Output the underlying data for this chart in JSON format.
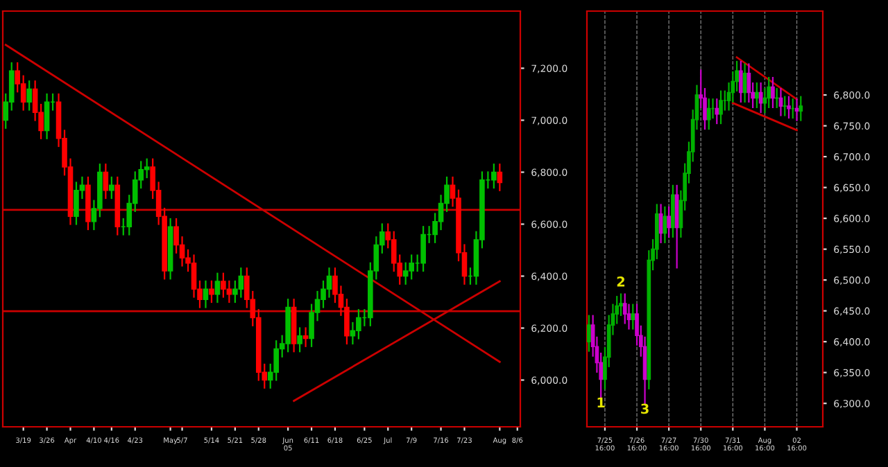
{
  "chart_data": [
    {
      "type": "candlestick",
      "categories": [
        null,
        null,
        null,
        "3/19",
        null,
        null,
        null,
        "3/26",
        null,
        null,
        null,
        "Apr",
        null,
        null,
        null,
        "4/10",
        null,
        null,
        "4/16",
        null,
        null,
        null,
        "4/23",
        null,
        null,
        null,
        null,
        null,
        "May",
        null,
        "5/7",
        null,
        null,
        null,
        null,
        "5/14",
        null,
        null,
        null,
        "5/21",
        null,
        null,
        null,
        "5/28",
        null,
        null,
        null,
        null,
        "Jun 05",
        null,
        null,
        null,
        "6/11",
        null,
        null,
        null,
        "6/18",
        null,
        null,
        null,
        null,
        "6/25",
        null,
        null,
        null,
        "Jul",
        null,
        null,
        null,
        "7/9",
        null,
        null,
        null,
        null,
        "7/16",
        null,
        null,
        null,
        "7/23",
        null,
        null,
        null,
        null,
        null,
        "Aug",
        null,
        null,
        "8/6"
      ],
      "ohlc": [
        [
          7000,
          7100,
          6970,
          7070
        ],
        [
          7070,
          7220,
          7040,
          7190
        ],
        [
          7190,
          7220,
          7110,
          7140
        ],
        [
          7140,
          7170,
          7040,
          7070
        ],
        [
          7070,
          7150,
          7040,
          7120
        ],
        [
          7120,
          7150,
          7000,
          7030
        ],
        [
          7030,
          7060,
          6930,
          6960
        ],
        [
          6960,
          7100,
          6930,
          7070
        ],
        [
          7070,
          7100,
          7040,
          7070
        ],
        [
          7070,
          7100,
          6900,
          6930
        ],
        [
          6930,
          6960,
          6790,
          6820
        ],
        [
          6820,
          6850,
          6600,
          6630
        ],
        [
          6630,
          6760,
          6600,
          6730
        ],
        [
          6730,
          6780,
          6700,
          6750
        ],
        [
          6750,
          6780,
          6580,
          6610
        ],
        [
          6610,
          6690,
          6580,
          6660
        ],
        [
          6660,
          6830,
          6630,
          6800
        ],
        [
          6800,
          6830,
          6700,
          6730
        ],
        [
          6730,
          6780,
          6700,
          6750
        ],
        [
          6750,
          6780,
          6560,
          6590
        ],
        [
          6590,
          6620,
          6560,
          6590
        ],
        [
          6590,
          6710,
          6560,
          6680
        ],
        [
          6680,
          6800,
          6650,
          6770
        ],
        [
          6770,
          6840,
          6740,
          6810
        ],
        [
          6810,
          6850,
          6780,
          6820
        ],
        [
          6820,
          6850,
          6700,
          6730
        ],
        [
          6730,
          6760,
          6600,
          6630
        ],
        [
          6630,
          6660,
          6390,
          6420
        ],
        [
          6420,
          6620,
          6390,
          6590
        ],
        [
          6590,
          6620,
          6490,
          6520
        ],
        [
          6520,
          6550,
          6440,
          6470
        ],
        [
          6470,
          6500,
          6420,
          6450
        ],
        [
          6450,
          6480,
          6320,
          6350
        ],
        [
          6350,
          6380,
          6280,
          6310
        ],
        [
          6310,
          6380,
          6280,
          6350
        ],
        [
          6350,
          6380,
          6300,
          6330
        ],
        [
          6330,
          6410,
          6300,
          6380
        ],
        [
          6380,
          6410,
          6320,
          6350
        ],
        [
          6350,
          6380,
          6300,
          6330
        ],
        [
          6330,
          6380,
          6300,
          6350
        ],
        [
          6350,
          6430,
          6320,
          6400
        ],
        [
          6400,
          6430,
          6280,
          6310
        ],
        [
          6310,
          6340,
          6210,
          6240
        ],
        [
          6240,
          6270,
          6000,
          6030
        ],
        [
          6030,
          6060,
          5970,
          6000
        ],
        [
          6000,
          6060,
          5970,
          6030
        ],
        [
          6030,
          6150,
          6000,
          6120
        ],
        [
          6120,
          6170,
          6090,
          6140
        ],
        [
          6140,
          6310,
          6110,
          6280
        ],
        [
          6280,
          6310,
          6110,
          6140
        ],
        [
          6140,
          6200,
          6110,
          6170
        ],
        [
          6170,
          6200,
          6130,
          6160
        ],
        [
          6160,
          6290,
          6130,
          6260
        ],
        [
          6260,
          6340,
          6230,
          6310
        ],
        [
          6310,
          6380,
          6280,
          6350
        ],
        [
          6350,
          6430,
          6320,
          6400
        ],
        [
          6400,
          6430,
          6300,
          6330
        ],
        [
          6330,
          6360,
          6250,
          6280
        ],
        [
          6280,
          6310,
          6140,
          6170
        ],
        [
          6170,
          6220,
          6140,
          6190
        ],
        [
          6190,
          6270,
          6160,
          6240
        ],
        [
          6240,
          6270,
          6210,
          6240
        ],
        [
          6240,
          6450,
          6210,
          6420
        ],
        [
          6420,
          6550,
          6390,
          6520
        ],
        [
          6520,
          6600,
          6490,
          6570
        ],
        [
          6570,
          6600,
          6510,
          6540
        ],
        [
          6540,
          6570,
          6420,
          6450
        ],
        [
          6450,
          6480,
          6370,
          6400
        ],
        [
          6400,
          6450,
          6370,
          6420
        ],
        [
          6420,
          6480,
          6390,
          6450
        ],
        [
          6450,
          6480,
          6420,
          6450
        ],
        [
          6450,
          6590,
          6420,
          6560
        ],
        [
          6560,
          6590,
          6530,
          6560
        ],
        [
          6560,
          6640,
          6530,
          6610
        ],
        [
          6610,
          6710,
          6580,
          6680
        ],
        [
          6680,
          6780,
          6650,
          6750
        ],
        [
          6750,
          6780,
          6670,
          6700
        ],
        [
          6700,
          6730,
          6460,
          6490
        ],
        [
          6490,
          6520,
          6370,
          6400
        ],
        [
          6400,
          6430,
          6370,
          6400
        ],
        [
          6400,
          6570,
          6370,
          6540
        ],
        [
          6540,
          6800,
          6510,
          6770
        ],
        [
          6770,
          6800,
          6740,
          6770
        ],
        [
          6770,
          6830,
          6740,
          6800
        ],
        [
          6800,
          6830,
          6730,
          6760
        ],
        null,
        null,
        null
      ],
      "colors": [
        "#00c000",
        "#00c000",
        "#ff0000",
        "#ff0000",
        "#00c000",
        "#ff0000",
        "#ff0000",
        "#00c000",
        "#00c000",
        "#ff0000",
        "#ff0000",
        "#ff0000",
        "#00c000",
        "#00c000",
        "#ff0000",
        "#00c000",
        "#00c000",
        "#ff0000",
        "#00c000",
        "#ff0000",
        "#00c000",
        "#00c000",
        "#00c000",
        "#00c000",
        "#00c000",
        "#ff0000",
        "#ff0000",
        "#ff0000",
        "#00c000",
        "#ff0000",
        "#ff0000",
        "#ff0000",
        "#ff0000",
        "#ff0000",
        "#00c000",
        "#ff0000",
        "#00c000",
        "#ff0000",
        "#ff0000",
        "#00c000",
        "#00c000",
        "#ff0000",
        "#ff0000",
        "#ff0000",
        "#ff0000",
        "#00c000",
        "#00c000",
        "#00c000",
        "#00c000",
        "#ff0000",
        "#00c000",
        "#ff0000",
        "#00c000",
        "#00c000",
        "#00c000",
        "#00c000",
        "#ff0000",
        "#ff0000",
        "#ff0000",
        "#00c000",
        "#00c000",
        "#00c000",
        "#00c000",
        "#00c000",
        "#00c000",
        "#ff0000",
        "#ff0000",
        "#ff0000",
        "#00c000",
        "#00c000",
        "#00c000",
        "#00c000",
        "#00c000",
        "#00c000",
        "#00c000",
        "#00c000",
        "#ff0000",
        "#ff0000",
        "#ff0000",
        "#00c000",
        "#00c000",
        "#00c000",
        "#00c000",
        "#00c000",
        "#ff0000",
        null,
        null,
        null
      ],
      "series": [
        {
          "type": "line",
          "color": "#cc0000",
          "values": [
            7290,
            null,
            null,
            null,
            null,
            null,
            null,
            null,
            null,
            null,
            null,
            null,
            null,
            null,
            null,
            null,
            null,
            null,
            null,
            null,
            null,
            null,
            null,
            null,
            null,
            null,
            null,
            null,
            null,
            null,
            null,
            null,
            null,
            null,
            null,
            null,
            null,
            null,
            null,
            null,
            null,
            null,
            null,
            null,
            null,
            null,
            null,
            null,
            null,
            null,
            null,
            null,
            null,
            null,
            null,
            null,
            null,
            null,
            null,
            null,
            null,
            null,
            null,
            null,
            null,
            null,
            null,
            null,
            null,
            null,
            null,
            null,
            null,
            null,
            null,
            null,
            null,
            null,
            null,
            null,
            null,
            null,
            null,
            null,
            6070,
            null,
            null,
            null
          ]
        },
        {
          "type": "line",
          "color": "#cc0000",
          "values": [
            null,
            null,
            null,
            null,
            null,
            null,
            null,
            null,
            null,
            null,
            null,
            null,
            null,
            null,
            null,
            null,
            null,
            null,
            null,
            null,
            null,
            null,
            null,
            null,
            null,
            null,
            null,
            null,
            null,
            null,
            null,
            null,
            null,
            null,
            null,
            null,
            null,
            null,
            null,
            null,
            null,
            null,
            null,
            null,
            null,
            null,
            null,
            null,
            null,
            5920,
            null,
            null,
            null,
            null,
            null,
            null,
            null,
            null,
            null,
            null,
            null,
            null,
            null,
            null,
            null,
            null,
            null,
            null,
            null,
            null,
            null,
            null,
            null,
            null,
            null,
            null,
            null,
            null,
            null,
            null,
            null,
            null,
            null,
            null,
            6380,
            null,
            null,
            null
          ]
        }
      ],
      "ref_lines": [
        {
          "axis": "y",
          "value": 6655,
          "color": "#cc0000"
        },
        {
          "axis": "y",
          "value": 6265,
          "color": "#cc0000"
        }
      ],
      "ylim": [
        5820,
        7420
      ],
      "yticks": [
        {
          "value": 6000,
          "label": "6,000.0"
        },
        {
          "value": 6200,
          "label": "6,200.0"
        },
        {
          "value": 6400,
          "label": "6,400.0"
        },
        {
          "value": 6600,
          "label": "6,600.0"
        },
        {
          "value": 6800,
          "label": "6,800.0"
        },
        {
          "value": 7000,
          "label": "7,000.0"
        },
        {
          "value": 7200,
          "label": "7,200.0"
        }
      ],
      "grid": false
    },
    {
      "type": "candlestick",
      "categories": [
        null,
        null,
        null,
        null,
        "7/25 16:00",
        null,
        null,
        null,
        null,
        null,
        null,
        null,
        "7/26 16:00",
        null,
        null,
        null,
        null,
        null,
        null,
        null,
        "7/27 16:00",
        null,
        null,
        null,
        null,
        null,
        null,
        null,
        "7/30 16:00",
        null,
        null,
        null,
        null,
        null,
        null,
        null,
        "7/31 16:00",
        null,
        null,
        null,
        null,
        null,
        null,
        null,
        "Aug 16:00",
        null,
        null,
        null,
        null,
        null,
        null,
        null,
        "02 16:00",
        null,
        null,
        null,
        null,
        null,
        null
      ],
      "ohlc": [
        [
          6400,
          6442,
          6385,
          6427
        ],
        [
          6427,
          6442,
          6377,
          6392
        ],
        [
          6392,
          6407,
          6351,
          6366
        ],
        [
          6366,
          6381,
          6310,
          6339
        ],
        [
          6339,
          6390,
          6324,
          6375
        ],
        [
          6375,
          6442,
          6360,
          6427
        ],
        [
          6427,
          6460,
          6412,
          6445
        ],
        [
          6445,
          6473,
          6430,
          6458
        ],
        [
          6458,
          6477,
          6443,
          6462
        ],
        [
          6462,
          6477,
          6430,
          6445
        ],
        [
          6445,
          6460,
          6421,
          6436
        ],
        [
          6436,
          6460,
          6421,
          6445
        ],
        [
          6445,
          6460,
          6395,
          6410
        ],
        [
          6410,
          6425,
          6377,
          6392
        ],
        [
          6392,
          6407,
          6300,
          6339
        ],
        [
          6339,
          6547,
          6324,
          6532
        ],
        [
          6532,
          6565,
          6517,
          6550
        ],
        [
          6550,
          6622,
          6535,
          6607
        ],
        [
          6607,
          6622,
          6561,
          6576
        ],
        [
          6576,
          6618,
          6561,
          6603
        ],
        [
          6603,
          6618,
          6570,
          6585
        ],
        [
          6585,
          6653,
          6570,
          6638
        ],
        [
          6638,
          6653,
          6520,
          6585
        ],
        [
          6585,
          6644,
          6570,
          6629
        ],
        [
          6629,
          6688,
          6614,
          6673
        ],
        [
          6673,
          6723,
          6658,
          6708
        ],
        [
          6708,
          6775,
          6693,
          6760
        ],
        [
          6760,
          6815,
          6745,
          6800
        ],
        [
          6800,
          6840,
          6780,
          6795
        ],
        [
          6795,
          6810,
          6745,
          6760
        ],
        [
          6760,
          6793,
          6745,
          6778
        ],
        [
          6778,
          6793,
          6763,
          6778
        ],
        [
          6778,
          6793,
          6754,
          6769
        ],
        [
          6769,
          6806,
          6754,
          6791
        ],
        [
          6791,
          6806,
          6776,
          6791
        ],
        [
          6791,
          6819,
          6776,
          6804
        ],
        [
          6804,
          6837,
          6789,
          6822
        ],
        [
          6822,
          6854,
          6807,
          6839
        ],
        [
          6839,
          6854,
          6789,
          6804
        ],
        [
          6804,
          6850,
          6789,
          6835
        ],
        [
          6835,
          6850,
          6789,
          6804
        ],
        [
          6804,
          6819,
          6780,
          6795
        ],
        [
          6795,
          6819,
          6780,
          6804
        ],
        [
          6804,
          6819,
          6772,
          6787
        ],
        [
          6787,
          6810,
          6772,
          6795
        ],
        [
          6795,
          6828,
          6780,
          6813
        ],
        [
          6813,
          6828,
          6780,
          6795
        ],
        [
          6795,
          6810,
          6780,
          6795
        ],
        [
          6795,
          6810,
          6767,
          6782
        ],
        [
          6782,
          6797,
          6767,
          6782
        ],
        [
          6782,
          6797,
          6763,
          6778
        ],
        [
          6778,
          6793,
          6763,
          6778
        ],
        [
          6778,
          6793,
          6759,
          6774
        ],
        [
          6774,
          6797,
          6759,
          6782
        ],
        null,
        null,
        null,
        null,
        null
      ],
      "colors": [
        "#00b000",
        "#cc00cc",
        "#cc00cc",
        "#cc00cc",
        "#00b000",
        "#00b000",
        "#00b000",
        "#00b000",
        "#00b000",
        "#cc00cc",
        "#cc00cc",
        "#00b000",
        "#cc00cc",
        "#cc00cc",
        "#cc00cc",
        "#00b000",
        "#00b000",
        "#00b000",
        "#cc00cc",
        "#00b000",
        "#cc00cc",
        "#00b000",
        "#cc00cc",
        "#00b000",
        "#00b000",
        "#00b000",
        "#00b000",
        "#00b000",
        "#cc00cc",
        "#cc00cc",
        "#00b000",
        "#00b000",
        "#cc00cc",
        "#00b000",
        "#00b000",
        "#00b000",
        "#00b000",
        "#00b000",
        "#cc00cc",
        "#00b000",
        "#cc00cc",
        "#cc00cc",
        "#00b000",
        "#cc00cc",
        "#00b000",
        "#00b000",
        "#cc00cc",
        "#00b000",
        "#cc00cc",
        "#00b000",
        "#cc00cc",
        "#00b000",
        "#cc00cc",
        "#00b000",
        null,
        null,
        null,
        null,
        null
      ],
      "series": [
        {
          "type": "line",
          "color": "#cc0000",
          "values": [
            null,
            null,
            null,
            null,
            null,
            null,
            null,
            null,
            null,
            null,
            null,
            null,
            null,
            null,
            null,
            null,
            null,
            null,
            null,
            null,
            null,
            null,
            null,
            null,
            null,
            null,
            null,
            null,
            null,
            null,
            null,
            null,
            null,
            null,
            null,
            null,
            null,
            6861,
            null,
            null,
            null,
            null,
            null,
            null,
            null,
            null,
            null,
            null,
            null,
            null,
            null,
            null,
            6793,
            null,
            null,
            null,
            null,
            null,
            null
          ]
        },
        {
          "type": "line",
          "color": "#cc0000",
          "values": [
            null,
            null,
            null,
            null,
            null,
            null,
            null,
            null,
            null,
            null,
            null,
            null,
            null,
            null,
            null,
            null,
            null,
            null,
            null,
            null,
            null,
            null,
            null,
            null,
            null,
            null,
            null,
            null,
            null,
            null,
            null,
            null,
            null,
            null,
            null,
            null,
            6787,
            null,
            null,
            null,
            null,
            null,
            null,
            null,
            null,
            null,
            null,
            null,
            null,
            null,
            null,
            null,
            6743,
            null,
            null,
            null,
            null,
            null,
            null
          ]
        }
      ],
      "annotations": [
        "1",
        "2",
        "3"
      ],
      "ylim": [
        6262,
        6936
      ],
      "yticks": [
        {
          "value": 6300,
          "label": "6,300.0"
        },
        {
          "value": 6350,
          "label": "6,350.0"
        },
        {
          "value": 6400,
          "label": "6,400.0"
        },
        {
          "value": 6450,
          "label": "6,450.0"
        },
        {
          "value": 6500,
          "label": "6,500.0"
        },
        {
          "value": 6550,
          "label": "6,550.0"
        },
        {
          "value": 6600,
          "label": "6,600.0"
        },
        {
          "value": 6650,
          "label": "6,650.0"
        },
        {
          "value": 6700,
          "label": "6,700.0"
        },
        {
          "value": 6750,
          "label": "6,750.0"
        },
        {
          "value": 6800,
          "label": "6,800.0"
        }
      ],
      "grid": "x"
    }
  ]
}
